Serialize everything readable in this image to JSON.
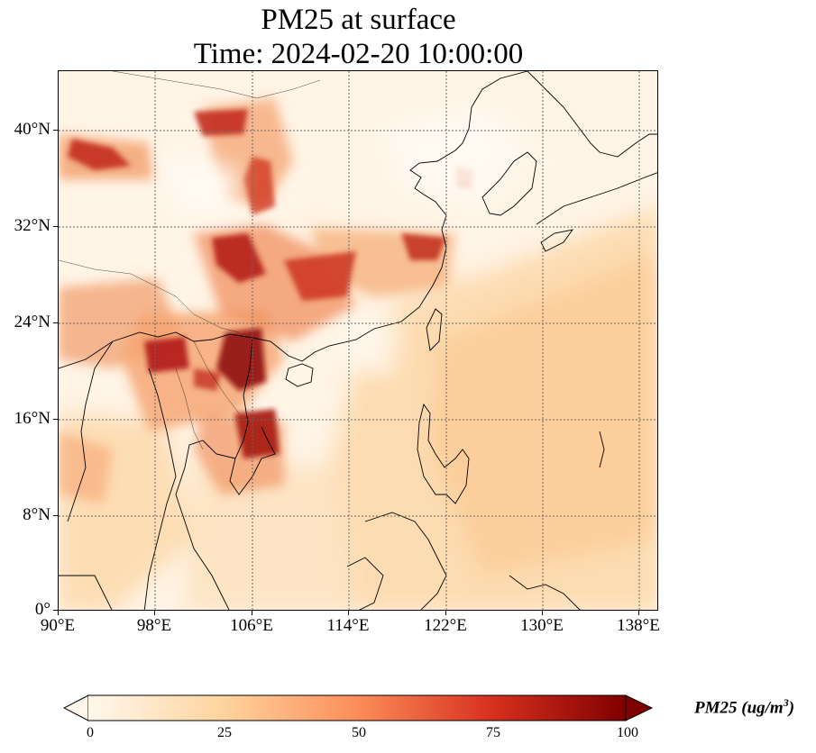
{
  "title": {
    "line1": "PM25 at surface",
    "line2": "Time: 2024-02-20 10:00:00"
  },
  "map": {
    "projection": "PlateCarree",
    "lon_range": [
      90,
      139
    ],
    "lat_range": [
      0,
      44
    ],
    "gridlines": "dotted",
    "coastlines": true,
    "lat_ticks": [
      "40°N",
      "32°N",
      "24°N",
      "16°N",
      "8°N",
      "0°"
    ],
    "lon_ticks": [
      "90°E",
      "98°E",
      "106°E",
      "114°E",
      "122°E",
      "130°E",
      "138°E"
    ]
  },
  "colorbar": {
    "cmap": "OrRd",
    "min": 0,
    "max": 100,
    "extend": "both",
    "ticks": [
      "0",
      "25",
      "50",
      "75",
      "100"
    ],
    "label": "PM25 (ug/m",
    "label_sup": "3",
    "label_close": ")",
    "colors": [
      "#fff7ec",
      "#fdd49e",
      "#fc8d59",
      "#d7301f",
      "#7f0000"
    ]
  }
}
